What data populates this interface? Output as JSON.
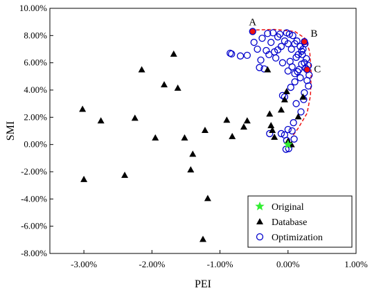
{
  "chart_data": {
    "type": "scatter",
    "xlabel": "PEI",
    "ylabel": "SMI",
    "xlim": [
      -3.5,
      1.0
    ],
    "ylim": [
      -8.0,
      10.0
    ],
    "x_ticks": [
      -3.0,
      -2.0,
      -1.0,
      0.0,
      1.0
    ],
    "x_tick_labels": [
      "-3.00%",
      "-2.00%",
      "-1.00%",
      "0.00%",
      "1.00%"
    ],
    "y_ticks": [
      -8,
      -6,
      -4,
      -2,
      0,
      2,
      4,
      6,
      8,
      10
    ],
    "y_tick_labels": [
      "-8.00%",
      "-6.00%",
      "-4.00%",
      "-2.00%",
      "0.00%",
      "2.00%",
      "4.00%",
      "6.00%",
      "8.00%",
      "10.00%"
    ],
    "grid": false,
    "legend_position": "bottom-right",
    "colors": {
      "original": "#33ee33",
      "database": "#000000",
      "optimization": "#0000cc",
      "highlight": "#ee1111",
      "frontier": "#ee1111"
    },
    "series": [
      {
        "name": "Original",
        "marker": "star",
        "points": [
          [
            0.0,
            0.0
          ]
        ]
      },
      {
        "name": "Database",
        "marker": "triangle",
        "points": [
          [
            -3.02,
            2.6
          ],
          [
            -3.0,
            -2.55
          ],
          [
            -2.75,
            1.75
          ],
          [
            -2.4,
            -2.25
          ],
          [
            -2.25,
            1.95
          ],
          [
            -2.15,
            5.5
          ],
          [
            -1.95,
            0.5
          ],
          [
            -1.82,
            4.4
          ],
          [
            -1.68,
            6.65
          ],
          [
            -1.62,
            4.15
          ],
          [
            -1.52,
            0.5
          ],
          [
            -1.43,
            -1.85
          ],
          [
            -1.4,
            -0.7
          ],
          [
            -1.25,
            -6.95
          ],
          [
            -1.22,
            1.05
          ],
          [
            -1.18,
            -3.95
          ],
          [
            -0.9,
            1.8
          ],
          [
            -0.82,
            0.6
          ],
          [
            -0.65,
            1.3
          ],
          [
            -0.6,
            1.75
          ],
          [
            -0.3,
            5.5
          ],
          [
            -0.27,
            2.25
          ],
          [
            -0.25,
            1.4
          ],
          [
            -0.23,
            1.05
          ],
          [
            -0.2,
            0.55
          ],
          [
            -0.1,
            2.55
          ],
          [
            -0.05,
            3.3
          ],
          [
            -0.02,
            3.9
          ],
          [
            0.0,
            0.25
          ],
          [
            0.05,
            0.0
          ],
          [
            0.15,
            2.05
          ],
          [
            0.22,
            3.5
          ]
        ]
      },
      {
        "name": "Optimization",
        "marker": "circle",
        "points": [
          [
            -0.85,
            6.7
          ],
          [
            -0.83,
            6.65
          ],
          [
            -0.7,
            6.5
          ],
          [
            -0.6,
            6.55
          ],
          [
            -0.5,
            7.5
          ],
          [
            -0.45,
            7.0
          ],
          [
            -0.42,
            5.65
          ],
          [
            -0.38,
            7.8
          ],
          [
            -0.35,
            5.55
          ],
          [
            -0.32,
            6.9
          ],
          [
            -0.3,
            8.15
          ],
          [
            -0.28,
            6.6
          ],
          [
            -0.25,
            7.5
          ],
          [
            -0.22,
            8.2
          ],
          [
            -0.2,
            6.8
          ],
          [
            -0.18,
            6.35
          ],
          [
            -0.15,
            7.9
          ],
          [
            -0.12,
            8.1
          ],
          [
            -0.1,
            7.2
          ],
          [
            -0.08,
            6.0
          ],
          [
            -0.08,
            3.6
          ],
          [
            -0.05,
            3.5
          ],
          [
            -0.05,
            7.6
          ],
          [
            -0.02,
            8.2
          ],
          [
            0.0,
            7.4
          ],
          [
            0.0,
            5.4
          ],
          [
            0.02,
            8.1
          ],
          [
            0.03,
            6.1
          ],
          [
            0.05,
            7.0
          ],
          [
            0.06,
            5.7
          ],
          [
            0.07,
            8.0
          ],
          [
            0.08,
            1.6
          ],
          [
            0.1,
            7.4
          ],
          [
            0.1,
            5.2
          ],
          [
            0.12,
            6.4
          ],
          [
            0.13,
            7.6
          ],
          [
            0.15,
            6.6
          ],
          [
            0.16,
            5.5
          ],
          [
            0.18,
            7.2
          ],
          [
            0.19,
            2.4
          ],
          [
            0.2,
            5.9
          ],
          [
            0.21,
            6.6
          ],
          [
            0.22,
            7.0
          ],
          [
            0.23,
            3.3
          ],
          [
            0.24,
            6.0
          ],
          [
            0.25,
            7.4
          ],
          [
            0.26,
            5.6
          ],
          [
            0.27,
            6.3
          ],
          [
            0.28,
            4.7
          ],
          [
            0.3,
            5.8
          ],
          [
            0.3,
            4.3
          ],
          [
            0.31,
            5.1
          ],
          [
            0.18,
            4.9
          ],
          [
            0.1,
            4.6
          ],
          [
            0.0,
            1.1
          ],
          [
            -0.05,
            0.7
          ],
          [
            -0.1,
            0.8
          ],
          [
            -0.03,
            -0.35
          ],
          [
            0.01,
            -0.3
          ],
          [
            -0.02,
            0.3
          ],
          [
            0.06,
            1.0
          ],
          [
            0.12,
            3.0
          ],
          [
            -0.27,
            0.8
          ],
          [
            0.09,
            0.4
          ],
          [
            -0.15,
            6.95
          ],
          [
            0.04,
            4.2
          ],
          [
            0.14,
            5.35
          ],
          [
            -0.4,
            6.2
          ],
          [
            0.24,
            3.8
          ],
          [
            0.2,
            6.85
          ]
        ]
      }
    ],
    "highlighted_points": [
      {
        "label": "A",
        "point": [
          -0.52,
          8.3
        ]
      },
      {
        "label": "B",
        "point": [
          0.24,
          7.55
        ]
      },
      {
        "label": "C",
        "point": [
          0.28,
          5.5
        ]
      }
    ],
    "frontier_curve": [
      [
        -0.55,
        8.4
      ],
      [
        -0.2,
        8.45
      ],
      [
        0.1,
        8.3
      ],
      [
        0.25,
        7.8
      ],
      [
        0.32,
        6.8
      ],
      [
        0.34,
        5.2
      ],
      [
        0.33,
        3.6
      ],
      [
        0.28,
        2.3
      ],
      [
        0.15,
        1.2
      ],
      [
        0.05,
        0.5
      ]
    ]
  }
}
